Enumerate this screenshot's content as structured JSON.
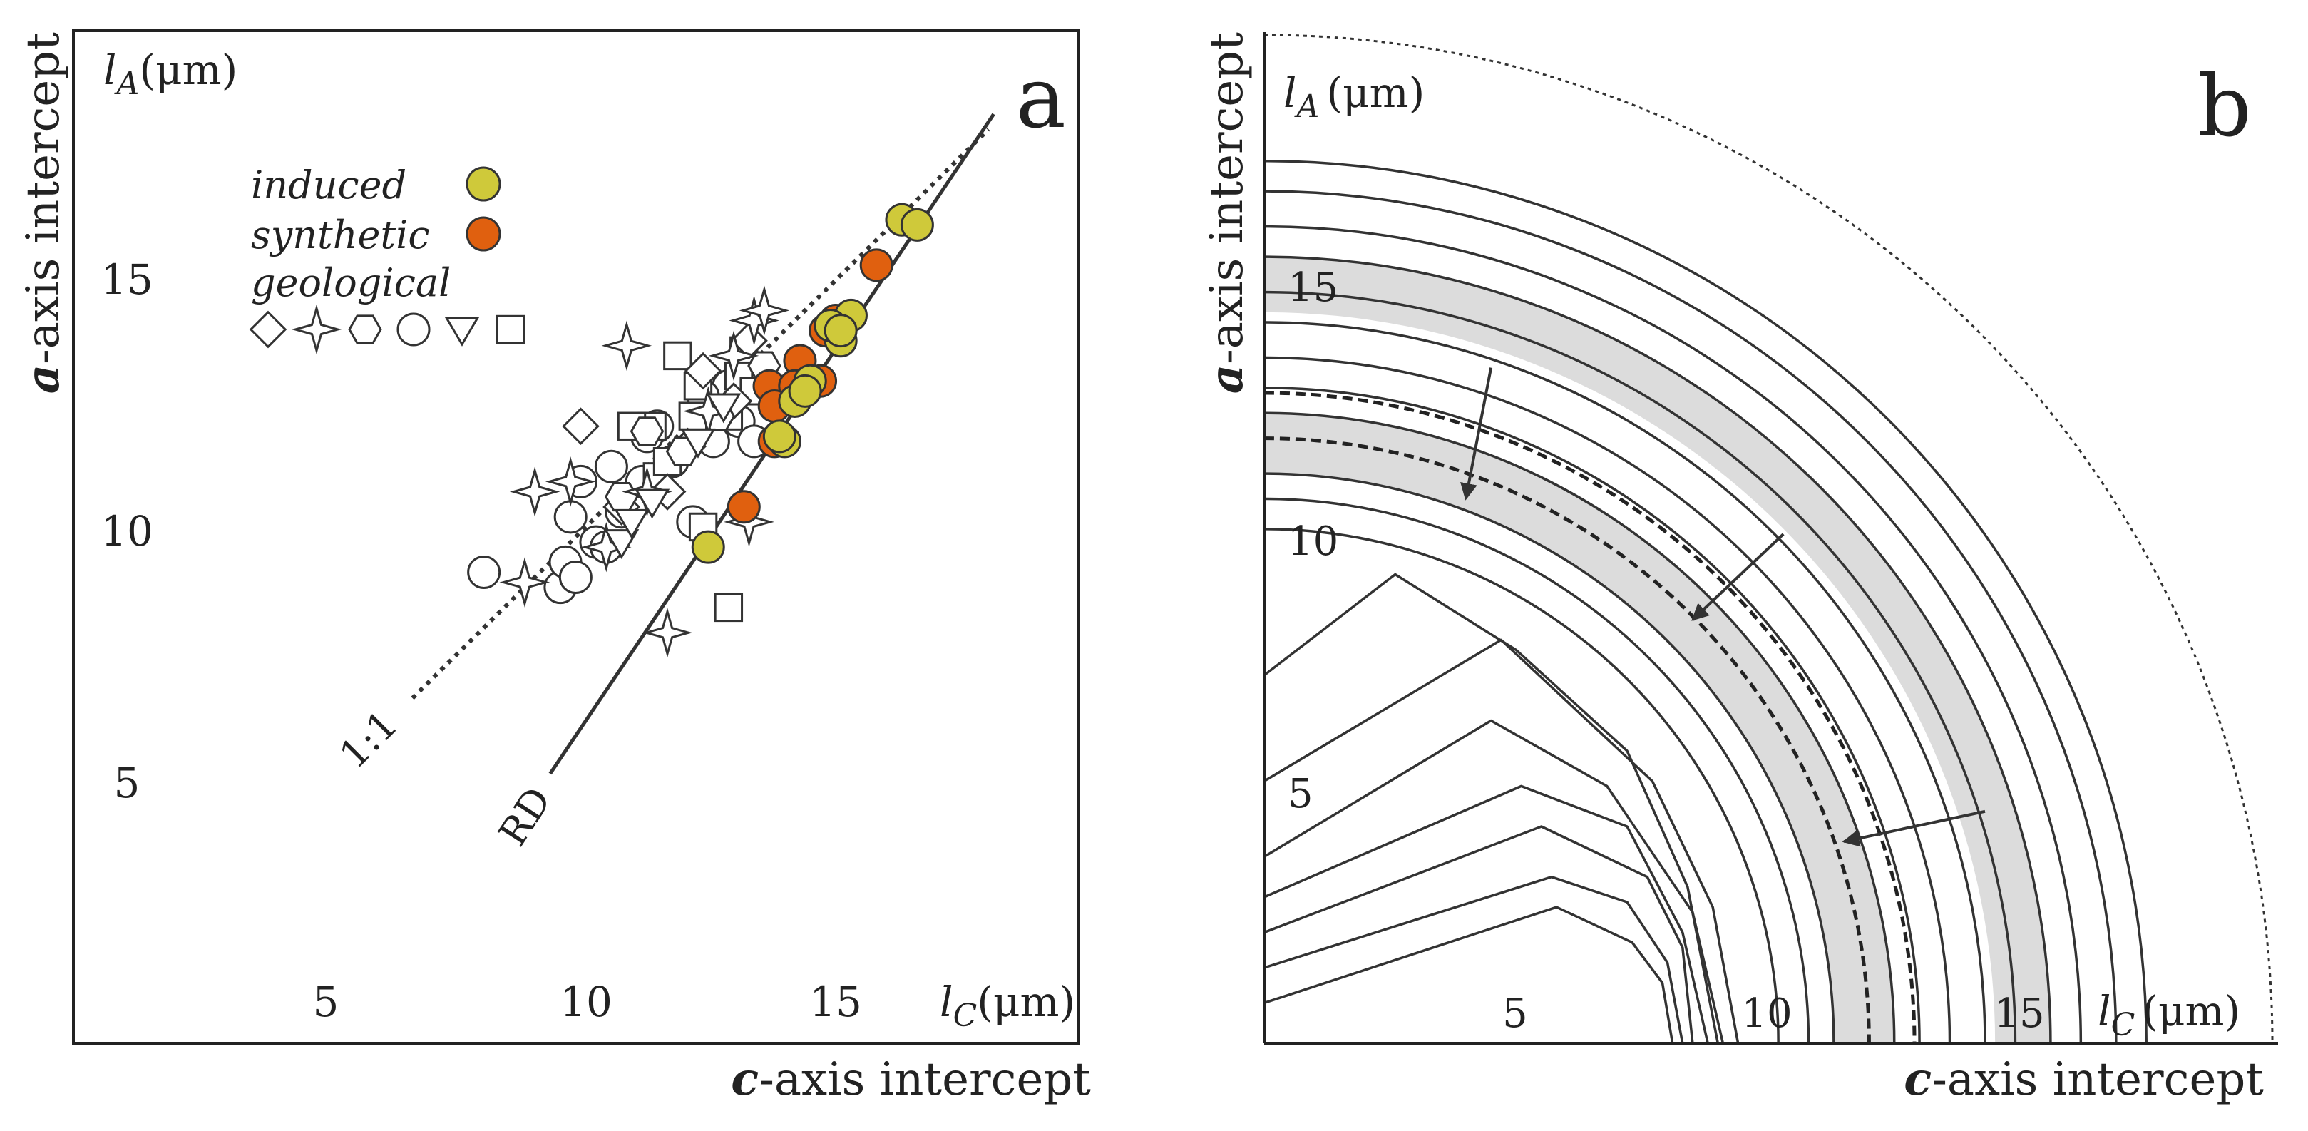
{
  "chart_data": [
    {
      "type": "scatter",
      "panel_label": "a",
      "xlabel_prefix": "c",
      "xlabel_suffix": "-axis intercept",
      "ylabel_prefix": "a",
      "ylabel_suffix": "-axis intercept",
      "x_unit_symbol": "l",
      "x_unit_sub": "C",
      "x_unit_text": "(μm)",
      "y_unit_symbol": "l",
      "y_unit_sub": "A",
      "y_unit_text": "(μm)",
      "xlim": [
        0,
        20
      ],
      "ylim": [
        0,
        20
      ],
      "xticks": [
        "5",
        "10",
        "15"
      ],
      "yticks": [
        "5",
        "10",
        "15"
      ],
      "legend": {
        "induced": "induced",
        "synthetic": "synthetic",
        "geological": "geological",
        "geological_symbols": [
          "diamond",
          "star",
          "hexagon",
          "circle",
          "triangle-down",
          "square"
        ]
      },
      "lines": [
        {
          "name": "1:1",
          "label": "1:1",
          "style": "dotted",
          "x": [
            6.7,
            18.0
          ],
          "y": [
            6.7,
            18.0
          ]
        },
        {
          "name": "RD",
          "label": "RD",
          "style": "solid",
          "x": [
            9.4,
            18.1
          ],
          "y": [
            5.2,
            18.3
          ]
        }
      ],
      "colors": {
        "induced": "#cfc93a",
        "synthetic": "#e0600f",
        "geological": "#ffffff",
        "line": "#333333"
      },
      "series": [
        {
          "name": "induced",
          "points": [
            [
              16.3,
              16.2
            ],
            [
              16.6,
              16.1
            ],
            [
              15.3,
              14.3
            ],
            [
              15.1,
              13.8
            ],
            [
              14.9,
              14.1
            ],
            [
              15.1,
              14.0
            ],
            [
              14.5,
              13.0
            ],
            [
              14.2,
              12.6
            ],
            [
              14.4,
              12.8
            ],
            [
              14.0,
              11.8
            ],
            [
              13.9,
              11.9
            ],
            [
              12.5,
              9.7
            ]
          ]
        },
        {
          "name": "synthetic",
          "points": [
            [
              15.8,
              15.3
            ],
            [
              15.0,
              14.2
            ],
            [
              14.8,
              14.0
            ],
            [
              14.3,
              13.4
            ],
            [
              14.7,
              13.0
            ],
            [
              13.7,
              12.9
            ],
            [
              14.2,
              12.9
            ],
            [
              13.8,
              12.5
            ],
            [
              13.8,
              11.8
            ],
            [
              13.2,
              10.5
            ]
          ]
        },
        {
          "name": "geological",
          "points": [
            {
              "shape": "circle",
              "x": [
                8.1,
                9.6,
                9.7,
                9.8,
                10.0,
                10.3,
                10.6,
                10.8,
                11.2,
                11.5,
                11.8,
                12.2,
                12.6,
                12.9,
                13.1,
                13.4,
                10.5,
                11.3,
                12.4,
                9.9
              ],
              "y": [
                9.2,
                8.9,
                9.4,
                10.3,
                11.0,
                9.8,
                11.3,
                10.4,
                11.0,
                12.1,
                11.4,
                10.2,
                11.8,
                12.9,
                12.2,
                11.8,
                9.7,
                11.9,
                12.7,
                9.1
              ]
            },
            {
              "shape": "square",
              "x": [
                11.9,
                12.3,
                13.2,
                12.8,
                13.1,
                11.4,
                11.5,
                12.2,
                11.0,
                12.9,
                11.7,
                13.4,
                12.4,
                12.9
              ],
              "y": [
                13.5,
                12.9,
                13.6,
                12.4,
                13.1,
                12.1,
                11.1,
                12.3,
                12.1,
                8.5,
                11.4,
                12.8,
                10.1,
                12.3
              ]
            },
            {
              "shape": "diamond",
              "x": [
                10.0,
                12.4,
                13.3,
                13.0,
                11.7,
                10.8,
                12.1
              ],
              "y": [
                12.1,
                13.2,
                13.8,
                12.6,
                10.8,
                10.5,
                11.7
              ]
            },
            {
              "shape": "hexagon",
              "x": [
                11.3,
                12.0,
                12.7,
                13.6,
                10.8
              ],
              "y": [
                12.0,
                11.6,
                12.3,
                13.3,
                10.7
              ]
            },
            {
              "shape": "star",
              "x": [
                8.9,
                9.8,
                10.5,
                10.9,
                11.7,
                12.5,
                13.0,
                13.4,
                13.6,
                11.3,
                13.3,
                9.1
              ],
              "y": [
                9.0,
                11.0,
                9.7,
                13.7,
                8.0,
                12.4,
                13.5,
                14.2,
                14.4,
                10.8,
                10.2,
                10.8
              ]
            },
            {
              "shape": "triangle-down",
              "x": [
                10.8,
                11.4,
                12.3,
                12.8,
                11.0
              ],
              "y": [
                9.8,
                10.6,
                11.8,
                12.5,
                10.2
              ]
            }
          ]
        }
      ]
    },
    {
      "type": "diagram",
      "panel_label": "b",
      "xlabel_prefix": "c",
      "xlabel_suffix": "-axis intercept",
      "ylabel_prefix": "a",
      "ylabel_suffix": "-axis intercept",
      "x_unit_symbol": "l",
      "x_unit_sub": "C",
      "x_unit_text": "(μm)",
      "y_unit_symbol": "l",
      "y_unit_sub": "A",
      "y_unit_text": "(μm)",
      "xlim": [
        0,
        20
      ],
      "ylim": [
        0,
        20
      ],
      "xticks": [
        "5",
        "10",
        "15"
      ],
      "yticks": [
        "5",
        "10",
        "15"
      ],
      "outer_arc_radius": 20,
      "shaded_bands": [
        [
          14.5,
          15.6
        ],
        [
          11.3,
          12.5
        ]
      ],
      "dashed_contours": [
        12.0,
        12.9
      ],
      "round_contours": [
        10.2,
        10.8,
        11.3,
        12.5,
        13.0,
        13.6,
        14.3,
        14.9,
        15.6,
        16.2,
        16.9,
        17.5
      ],
      "arrows": [
        {
          "from": [
            4.5,
            13.4
          ],
          "to": [
            4.0,
            10.8
          ]
        },
        {
          "from": [
            10.3,
            10.1
          ],
          "to": [
            8.5,
            8.4
          ]
        },
        {
          "from": [
            14.3,
            4.6
          ],
          "to": [
            11.5,
            4.0
          ]
        }
      ]
    }
  ]
}
